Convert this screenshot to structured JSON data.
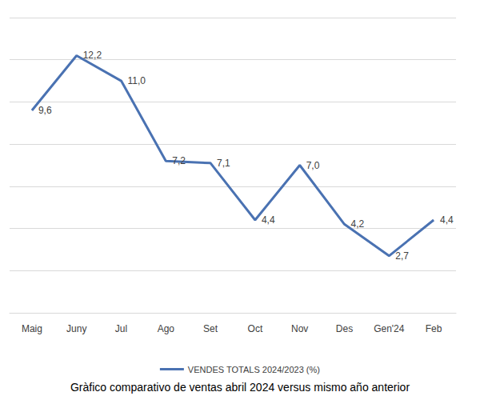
{
  "chart_data": {
    "type": "line",
    "title": "Gràfico comparativo de ventas abril 2024 versus mismo año anterior",
    "categories": [
      "Maig",
      "Juny",
      "Jul",
      "Ago",
      "Set",
      "Oct",
      "Nov",
      "Des",
      "Gen'24",
      "Feb"
    ],
    "series": [
      {
        "name": "VENDES TOTALS 2024/2023 (%)",
        "color": "#4a72b2",
        "values": [
          9.6,
          12.2,
          11.0,
          7.2,
          7.1,
          4.4,
          7.0,
          4.2,
          2.7,
          4.4
        ],
        "value_labels": [
          "9,6",
          "12,2",
          "11,0",
          "7,2",
          "7,1",
          "4,4",
          "7,0",
          "4,2",
          "2,7",
          "4,4"
        ]
      }
    ],
    "ylim": [
      0,
      14
    ],
    "yticks": [
      0,
      2,
      4,
      6,
      8,
      10,
      12,
      14
    ],
    "grid": true,
    "legend": "bottom",
    "data_labels": true,
    "tick_labels": "x"
  }
}
